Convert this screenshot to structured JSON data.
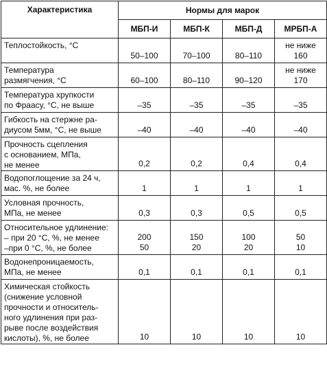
{
  "header": {
    "characteristic": "Характеристика",
    "norms": "Нормы для марок",
    "grades": [
      "МБП-И",
      "МБП-К",
      "МБП-Д",
      "МРБП-А"
    ]
  },
  "rows": [
    {
      "label": [
        "Теплостойкость, °С"
      ],
      "values": [
        [
          "50–100"
        ],
        [
          "70–100"
        ],
        [
          "80–110"
        ],
        [
          "не ниже",
          "160"
        ]
      ]
    },
    {
      "label": [
        "Температура",
        "размягчения, °С"
      ],
      "values": [
        [
          "60–100"
        ],
        [
          "80–110"
        ],
        [
          "90–120"
        ],
        [
          "не ниже",
          "170"
        ]
      ]
    },
    {
      "label": [
        "Температура хрупкости",
        "по Фраасу, °С, не выше"
      ],
      "values": [
        [
          "–35"
        ],
        [
          "–35"
        ],
        [
          "–35"
        ],
        [
          "–35"
        ]
      ]
    },
    {
      "label": [
        "Гибкость на стержне ра-",
        "диусом 5мм, °С, не выше"
      ],
      "values": [
        [
          "–40"
        ],
        [
          "–40"
        ],
        [
          "–40"
        ],
        [
          "–40"
        ]
      ]
    },
    {
      "label": [
        "Прочность сцепления",
        "с основанием, МПа,",
        "не менее"
      ],
      "values": [
        [
          "0,2"
        ],
        [
          "0,2"
        ],
        [
          "0,4"
        ],
        [
          "0,4"
        ]
      ]
    },
    {
      "label": [
        "Водопоглощение за 24 ч,",
        "мас. %, не более"
      ],
      "values": [
        [
          "1"
        ],
        [
          "1"
        ],
        [
          "1"
        ],
        [
          "1"
        ]
      ]
    },
    {
      "label": [
        "Условная прочность,",
        "МПа, не менее"
      ],
      "values": [
        [
          "0,3"
        ],
        [
          "0,3"
        ],
        [
          "0,5"
        ],
        [
          "0,5"
        ]
      ]
    },
    {
      "label": [
        "Относительное удлинение:",
        "– при 20 °С, %, не менее",
        "–при 0 °С, %, не более"
      ],
      "values": [
        [
          "200",
          "50"
        ],
        [
          "150",
          "20"
        ],
        [
          "100",
          "20"
        ],
        [
          "50",
          "10"
        ]
      ]
    },
    {
      "label": [
        "Водонепроницаемость,",
        "МПа, не менее"
      ],
      "values": [
        [
          "0,1"
        ],
        [
          "0,1"
        ],
        [
          "0,1"
        ],
        [
          "0,1"
        ]
      ]
    },
    {
      "label": [
        "Химическая стойкость",
        "(снижение условной",
        "прочности и относитель-",
        "ного удлинения при раз-",
        "рыве после воздействия",
        "кислоты), %, не более"
      ],
      "values": [
        [
          "10"
        ],
        [
          "10"
        ],
        [
          "10"
        ],
        [
          "10"
        ]
      ]
    }
  ]
}
